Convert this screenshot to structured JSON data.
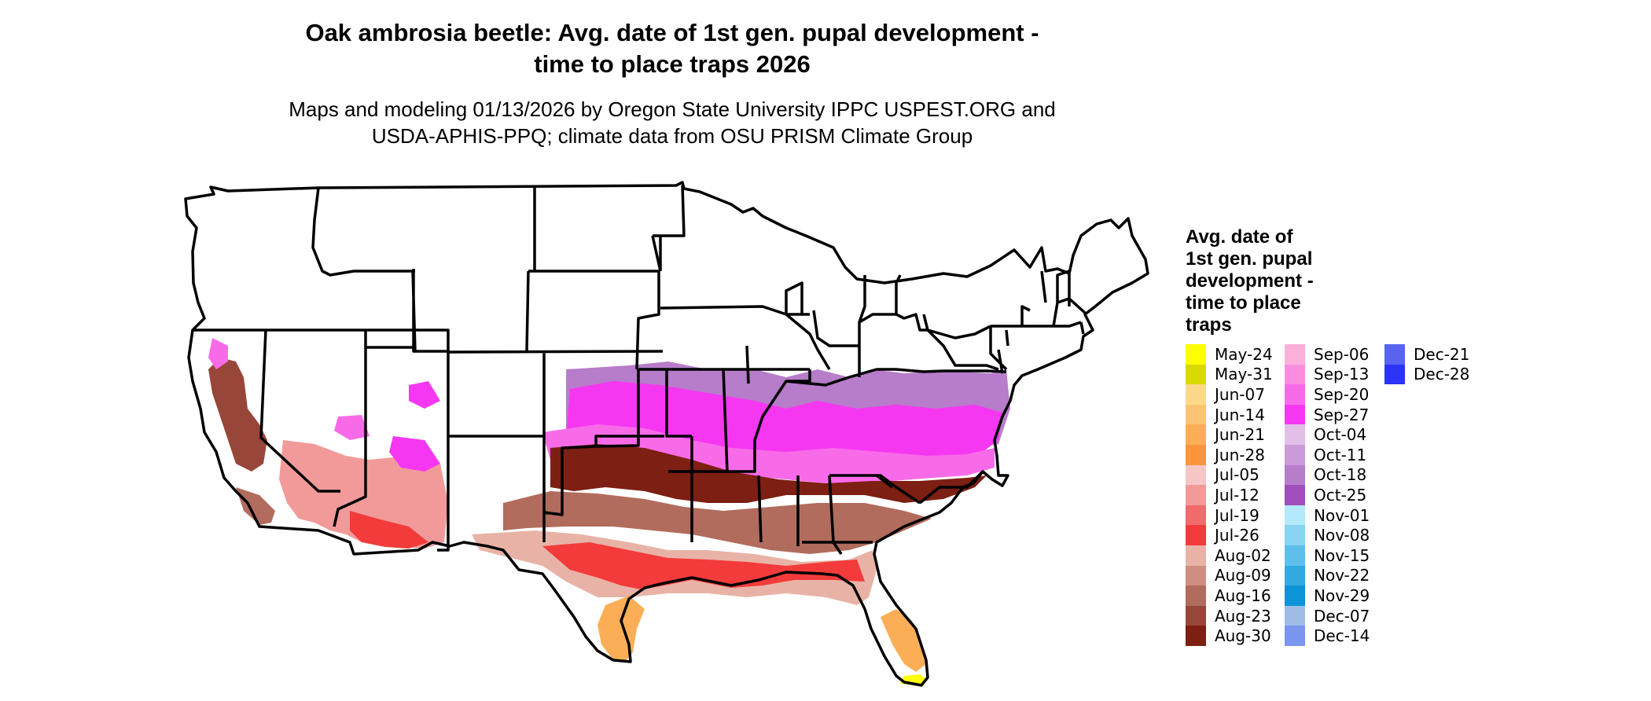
{
  "title": {
    "line1": "Oak ambrosia beetle: Avg. date of 1st gen. pupal development -",
    "line2": "time to place traps 2026"
  },
  "subtitle": {
    "line1": "Maps and modeling 01/13/2026 by Oregon State University IPPC USPEST.ORG and",
    "line2": "USDA-APHIS-PPQ; climate data from OSU PRISM Climate Group"
  },
  "map": {
    "region": "contiguous-united-states",
    "background_color": "#ffffff",
    "border_color": "#000000"
  },
  "legend": {
    "title_lines": [
      "Avg. date of",
      "1st gen. pupal",
      "development -",
      "time to place",
      "traps"
    ],
    "columns": [
      [
        {
          "label": "May-24",
          "color": "#ffff00"
        },
        {
          "label": "May-31",
          "color": "#dada00"
        },
        {
          "label": "Jun-07",
          "color": "#fcd98a"
        },
        {
          "label": "Jun-14",
          "color": "#fcc472"
        },
        {
          "label": "Jun-21",
          "color": "#fcae56"
        },
        {
          "label": "Jun-28",
          "color": "#fb953c"
        },
        {
          "label": "Jul-05",
          "color": "#f6c6c6"
        },
        {
          "label": "Jul-12",
          "color": "#f29a9a"
        },
        {
          "label": "Jul-19",
          "color": "#f06b6b"
        },
        {
          "label": "Jul-26",
          "color": "#f33b3b"
        },
        {
          "label": "Aug-02",
          "color": "#e8b3a6"
        },
        {
          "label": "Aug-09",
          "color": "#cf8e80"
        },
        {
          "label": "Aug-16",
          "color": "#b16c5d"
        },
        {
          "label": "Aug-23",
          "color": "#99463a"
        },
        {
          "label": "Aug-30",
          "color": "#7d1f13"
        }
      ],
      [
        {
          "label": "Sep-06",
          "color": "#fbb0dc"
        },
        {
          "label": "Sep-13",
          "color": "#fb8de0"
        },
        {
          "label": "Sep-20",
          "color": "#f86be8"
        },
        {
          "label": "Sep-27",
          "color": "#f637f2"
        },
        {
          "label": "Oct-04",
          "color": "#e1c0e8"
        },
        {
          "label": "Oct-11",
          "color": "#cb9ad8"
        },
        {
          "label": "Oct-18",
          "color": "#b77cca"
        },
        {
          "label": "Oct-25",
          "color": "#9e4fba"
        },
        {
          "label": "Nov-01",
          "color": "#b3e9fb"
        },
        {
          "label": "Nov-08",
          "color": "#88d3f2"
        },
        {
          "label": "Nov-15",
          "color": "#5ec0ea"
        },
        {
          "label": "Nov-22",
          "color": "#33aae0"
        },
        {
          "label": "Nov-29",
          "color": "#0c94d6"
        },
        {
          "label": "Dec-07",
          "color": "#a0bde6"
        },
        {
          "label": "Dec-14",
          "color": "#7a96ee"
        }
      ],
      [
        {
          "label": "Dec-21",
          "color": "#5863ef"
        },
        {
          "label": "Dec-28",
          "color": "#2b33f6"
        }
      ]
    ]
  }
}
